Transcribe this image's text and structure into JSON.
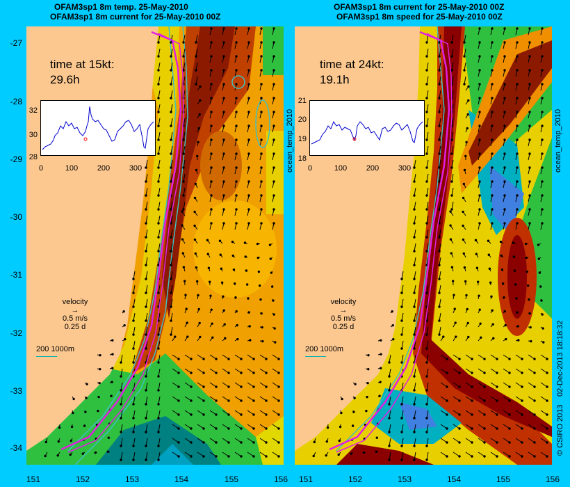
{
  "left_panel": {
    "title_line1": "OFAM3sp1 8m temp. 25-May-2010",
    "title_line2": "OFAM3sp1 8m current for 25-May-2010 00Z",
    "time_label": "time at 15kt:",
    "time_value": "29.6h",
    "colorbar_label": "ocean_temp_2010",
    "inset_y_ticks": [
      "32",
      "30",
      "28"
    ],
    "inset_x_ticks": [
      "0",
      "100",
      "200",
      "300"
    ]
  },
  "right_panel": {
    "title_line1": "OFAM3sp1 8m current for 25-May-2010 00Z",
    "title_line2": "OFAM3sp1 8m speed for 25-May-2010 00Z",
    "time_label": "time at 24kt:",
    "time_value": "19.1h",
    "colorbar_label": "ocean_temp_2010",
    "inset_y_ticks": [
      "21",
      "20",
      "19",
      "18"
    ],
    "inset_x_ticks": [
      "0",
      "100",
      "200",
      "300"
    ]
  },
  "velocity_legend": {
    "label": "velocity",
    "speed": "0.5 m/s",
    "duration": "0.25 d"
  },
  "depth_legend": {
    "label": "200  1000m"
  },
  "latitude_labels": [
    "-27",
    "-28",
    "-29",
    "-30",
    "-31",
    "-32",
    "-33",
    "-34"
  ],
  "longitude_labels": [
    "151",
    "152",
    "153",
    "154",
    "155",
    "156"
  ],
  "copyright": "© CSIRO 2013",
  "timestamp": "02-Dec-2013 18:18:32",
  "colors": {
    "background": "#00ccff",
    "land": "#fcc890",
    "route": "#e020e0",
    "isobath": "#40c0c0"
  }
}
